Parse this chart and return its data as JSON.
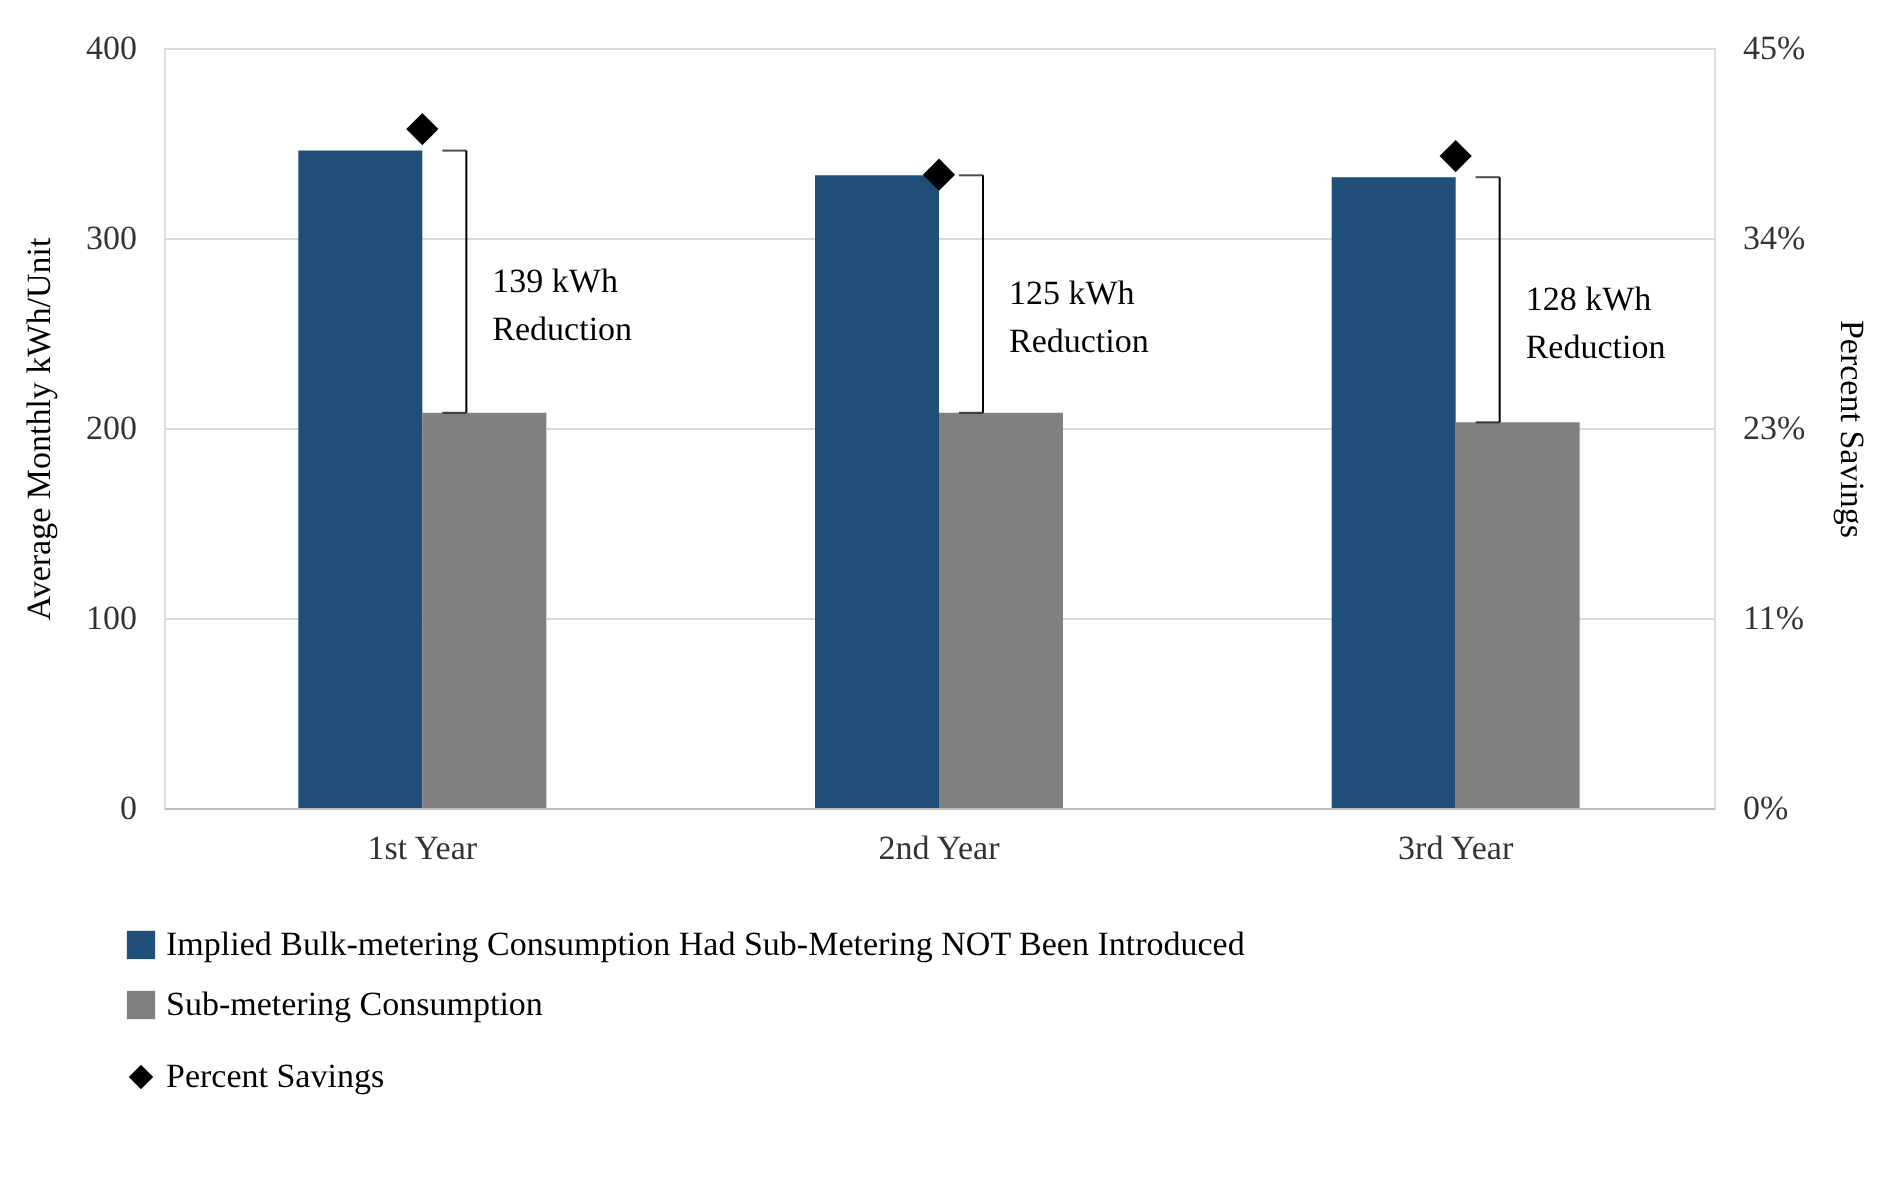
{
  "chart_data": {
    "type": "bar",
    "categories": [
      "1st Year",
      "2nd Year",
      "3rd Year"
    ],
    "ylabel": "Average Monthly kWh/Unit",
    "y2label": "Percent Savings",
    "series": [
      {
        "name": "Implied Bulk-metering Consumption  Had Sub-Metering NOT Been Introduced",
        "color": "#1f4e79",
        "values": [
          346,
          333,
          332
        ]
      },
      {
        "name": "Sub-metering Consumption",
        "color": "#808080",
        "values": [
          208,
          208,
          203
        ]
      },
      {
        "name": "Percent Savings",
        "type": "scatter",
        "axis": "y2",
        "color": "#000000",
        "marker": "diamond",
        "values": [
          40.2,
          37.5,
          38.6
        ]
      }
    ],
    "ylim": [
      0,
      400
    ],
    "yticks": [
      0,
      100,
      200,
      300,
      400
    ],
    "y2lim": [
      0,
      45
    ],
    "y2ticks": [
      {
        "value": 0,
        "label": "0%"
      },
      {
        "value": 11.25,
        "label": "11%"
      },
      {
        "value": 22.5,
        "label": "23%"
      },
      {
        "value": 33.75,
        "label": "34%"
      },
      {
        "value": 45,
        "label": "45%"
      }
    ],
    "annotations": [
      {
        "text": "139 kWh\nReduction",
        "x": "1st Year",
        "y": 277
      },
      {
        "text": "125 kWh\nReduction",
        "x": "2nd Year",
        "y": 270.5
      },
      {
        "text": "128 kWh\nReduction",
        "x": "3rd Year",
        "y": 267.5
      }
    ],
    "grid": "y",
    "legend": "bottom"
  }
}
